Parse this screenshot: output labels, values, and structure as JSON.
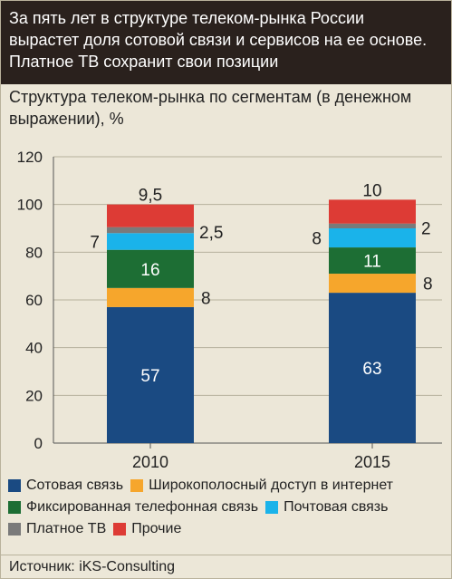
{
  "header": {
    "title_lines": [
      "За пять лет в структуре телеком-рынка России",
      "вырастет доля сотовой связи и сервисов на ее основе.",
      "Платное ТВ сохранит свои позиции"
    ]
  },
  "subtitle_lines": [
    "Структура телеком-рынка по сегментам (в денежном",
    "выражении), %"
  ],
  "source": "Источник: iKS-Consulting",
  "chart_data": {
    "type": "bar",
    "stacked": true,
    "categories": [
      "2010",
      "2015"
    ],
    "ylim": [
      0,
      120
    ],
    "yticks": [
      0,
      20,
      40,
      60,
      80,
      100,
      120
    ],
    "grid": true,
    "legend_position": "bottom",
    "series": [
      {
        "key": "mobile",
        "name": "Сотовая связь",
        "color": "#1a4a82",
        "values": [
          57,
          63
        ],
        "labels": [
          "57",
          "63"
        ]
      },
      {
        "key": "broadband",
        "name": "Широкополосный доступ в интернет",
        "color": "#f6a62c",
        "values": [
          8,
          8
        ],
        "labels": [
          "8",
          "8"
        ]
      },
      {
        "key": "fixed",
        "name": "Фиксированная телефонная связь",
        "color": "#1d6e34",
        "values": [
          16,
          11
        ],
        "labels": [
          "16",
          "11"
        ]
      },
      {
        "key": "postal",
        "name": "Почтовая связь",
        "color": "#1ab3ea",
        "values": [
          7,
          8
        ],
        "labels": [
          "7",
          "8"
        ]
      },
      {
        "key": "paytv",
        "name": "Платное ТВ",
        "color": "#7a7a7a",
        "values": [
          2.5,
          2
        ],
        "labels": [
          "2,5",
          "2"
        ]
      },
      {
        "key": "other",
        "name": "Прочие",
        "color": "#dd3b35",
        "values": [
          9.5,
          10
        ],
        "labels": [
          "9,5",
          "10"
        ]
      }
    ]
  }
}
